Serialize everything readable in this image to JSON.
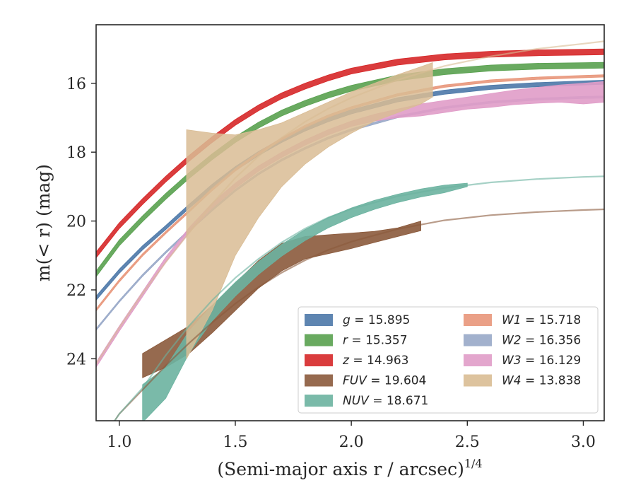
{
  "chart_data": {
    "type": "line",
    "title": "",
    "xlabel": "(Semi-major axis r / arcsec)",
    "xlabel_exponent": "1/4",
    "ylabel": "m(< r) (mag)",
    "xlim": [
      0.9,
      3.09
    ],
    "ylim": [
      25.8,
      14.3
    ],
    "y_inverted": true,
    "x_ticks": [
      "1.0",
      "1.5",
      "2.0",
      "2.5",
      "3.0"
    ],
    "y_ticks": [
      "16",
      "18",
      "20",
      "22",
      "24"
    ],
    "grid": false,
    "legend_placement": "lower-right",
    "series": [
      {
        "name": "g",
        "legend_value": "15.895",
        "color": "#4c78a8",
        "band_x": [
          0.9,
          1.0,
          1.1,
          1.2,
          1.3,
          1.4,
          1.5,
          1.6,
          1.7,
          1.8,
          1.9,
          2.0,
          2.2,
          2.4,
          2.6,
          2.8,
          3.0,
          3.09
        ],
        "band_low": [
          22.18,
          21.4,
          20.72,
          20.13,
          19.52,
          18.93,
          18.42,
          17.98,
          17.6,
          17.27,
          17.0,
          16.77,
          16.42,
          16.2,
          16.06,
          15.98,
          15.93,
          15.91
        ],
        "band_high": [
          22.3,
          21.52,
          20.84,
          20.25,
          19.64,
          19.05,
          18.54,
          18.1,
          17.72,
          17.39,
          17.12,
          16.89,
          16.54,
          16.32,
          16.18,
          16.1,
          16.05,
          16.03
        ]
      },
      {
        "name": "r",
        "legend_value": "15.357",
        "color": "#59a14f",
        "band_x": [
          0.9,
          1.0,
          1.1,
          1.2,
          1.3,
          1.4,
          1.5,
          1.6,
          1.7,
          1.8,
          1.9,
          2.0,
          2.2,
          2.4,
          2.6,
          2.8,
          3.0,
          3.09
        ],
        "band_low": [
          21.45,
          20.55,
          19.85,
          19.2,
          18.6,
          18.05,
          17.55,
          17.13,
          16.78,
          16.5,
          16.26,
          16.06,
          15.76,
          15.58,
          15.47,
          15.42,
          15.4,
          15.39
        ],
        "band_high": [
          21.62,
          20.72,
          20.02,
          19.37,
          18.77,
          18.22,
          17.72,
          17.3,
          16.95,
          16.67,
          16.43,
          16.23,
          15.93,
          15.75,
          15.64,
          15.59,
          15.57,
          15.56
        ]
      },
      {
        "name": "z",
        "legend_value": "14.963",
        "color": "#d62728",
        "band_x": [
          0.9,
          1.0,
          1.1,
          1.2,
          1.3,
          1.4,
          1.5,
          1.6,
          1.7,
          1.8,
          1.9,
          2.0,
          2.2,
          2.4,
          2.6,
          2.8,
          3.0,
          3.09
        ],
        "band_low": [
          20.9,
          20.05,
          19.35,
          18.7,
          18.1,
          17.55,
          17.05,
          16.63,
          16.28,
          16.0,
          15.76,
          15.56,
          15.3,
          15.15,
          15.07,
          15.03,
          15.01,
          15.0
        ],
        "band_high": [
          21.07,
          20.22,
          19.52,
          18.87,
          18.27,
          17.72,
          17.22,
          16.8,
          16.45,
          16.17,
          15.93,
          15.73,
          15.47,
          15.32,
          15.24,
          15.2,
          15.18,
          15.17
        ]
      },
      {
        "name": "FUV",
        "legend_value": "19.604",
        "color": "#8b5a3c",
        "band_x": [
          1.1,
          1.2,
          1.3,
          1.4,
          1.5,
          1.6,
          1.7,
          1.8,
          1.9,
          2.0,
          2.1,
          2.2,
          2.3
        ],
        "band_low": [
          23.85,
          23.45,
          23.05,
          22.45,
          21.8,
          21.15,
          20.65,
          20.45,
          20.4,
          20.35,
          20.3,
          20.2,
          20.0
        ],
        "band_high": [
          24.55,
          24.25,
          23.85,
          23.25,
          22.6,
          21.95,
          21.45,
          21.1,
          20.95,
          20.8,
          20.62,
          20.45,
          20.28
        ],
        "fit_x": [
          0.9,
          1.0,
          1.1,
          1.2,
          1.3,
          1.4,
          1.5,
          1.6,
          1.7,
          1.8,
          1.9,
          2.0,
          2.2,
          2.4,
          2.6,
          2.8,
          3.0,
          3.09
        ],
        "fit_y": [
          26.6,
          25.6,
          24.9,
          24.2,
          23.55,
          22.95,
          22.4,
          21.92,
          21.5,
          21.14,
          20.84,
          20.6,
          20.23,
          19.98,
          19.83,
          19.74,
          19.68,
          19.66
        ]
      },
      {
        "name": "NUV",
        "legend_value": "18.671",
        "color": "#6bb3a0",
        "band_x": [
          1.1,
          1.2,
          1.3,
          1.4,
          1.5,
          1.6,
          1.7,
          1.8,
          1.9,
          2.0,
          2.1,
          2.2,
          2.3,
          2.4,
          2.5
        ],
        "band_low": [
          24.75,
          24.25,
          23.2,
          22.45,
          21.78,
          21.18,
          20.68,
          20.25,
          19.9,
          19.62,
          19.4,
          19.22,
          19.07,
          18.96,
          18.9
        ],
        "band_high": [
          25.85,
          25.15,
          23.85,
          22.9,
          22.18,
          21.55,
          21.02,
          20.57,
          20.2,
          19.9,
          19.66,
          19.46,
          19.3,
          19.18,
          19.0
        ],
        "fit_x": [
          0.9,
          1.0,
          1.1,
          1.2,
          1.3,
          1.4,
          1.5,
          1.6,
          1.7,
          1.8,
          1.9,
          2.0,
          2.2,
          2.4,
          2.6,
          2.8,
          3.0,
          3.09
        ],
        "fit_y": [
          26.6,
          25.6,
          24.85,
          23.9,
          23.05,
          22.3,
          21.65,
          21.1,
          20.62,
          20.22,
          19.9,
          19.65,
          19.28,
          19.04,
          18.88,
          18.78,
          18.72,
          18.7
        ]
      },
      {
        "name": "W1",
        "legend_value": "15.718",
        "color": "#e8967a",
        "band_x": [
          0.9,
          1.0,
          1.1,
          1.2,
          1.3,
          1.4,
          1.5,
          1.6,
          1.7,
          1.8,
          1.9,
          2.0,
          2.2,
          2.4,
          2.6,
          2.8,
          3.0,
          3.09
        ],
        "band_low": [
          22.55,
          21.7,
          20.95,
          20.3,
          19.68,
          19.05,
          18.48,
          18.0,
          17.58,
          17.22,
          16.92,
          16.68,
          16.3,
          16.05,
          15.9,
          15.82,
          15.77,
          15.75
        ],
        "band_high": [
          22.62,
          21.77,
          21.02,
          20.37,
          19.75,
          19.12,
          18.55,
          18.07,
          17.65,
          17.29,
          16.99,
          16.75,
          16.37,
          16.12,
          15.97,
          15.89,
          15.84,
          15.82
        ]
      },
      {
        "name": "W2",
        "legend_value": "16.356",
        "color": "#98a8c8",
        "band_x": [
          0.9,
          1.0,
          1.1,
          1.2,
          1.3,
          1.4,
          1.5,
          1.6,
          1.7,
          1.8,
          1.9,
          2.0,
          2.2,
          2.4,
          2.6,
          2.8,
          3.0,
          3.09
        ],
        "band_low": [
          23.12,
          22.3,
          21.55,
          20.88,
          20.25,
          19.65,
          19.08,
          18.6,
          18.2,
          17.86,
          17.56,
          17.32,
          16.94,
          16.68,
          16.52,
          16.43,
          16.38,
          16.37
        ],
        "band_high": [
          23.18,
          22.36,
          21.61,
          20.94,
          20.31,
          19.71,
          19.14,
          18.66,
          18.26,
          17.92,
          17.62,
          17.38,
          17.0,
          16.74,
          16.58,
          16.49,
          16.44,
          16.43
        ]
      },
      {
        "name": "W3",
        "legend_value": "16.129",
        "color": "#e09cc8",
        "band_x": [
          0.9,
          1.0,
          1.1,
          1.2,
          1.3,
          1.4,
          1.5,
          1.6,
          1.7,
          1.8,
          1.9,
          2.0,
          2.1,
          2.2,
          2.3,
          2.4,
          2.5,
          2.6,
          2.7,
          2.8,
          2.9,
          3.0,
          3.09
        ],
        "band_low": [
          24.1,
          23.05,
          22.05,
          21.05,
          20.2,
          19.48,
          18.9,
          18.4,
          18.0,
          17.65,
          17.35,
          17.1,
          16.9,
          16.75,
          16.6,
          16.5,
          16.4,
          16.3,
          16.2,
          16.12,
          16.05,
          16.0,
          15.95
        ],
        "band_high": [
          24.25,
          23.2,
          22.2,
          21.2,
          20.35,
          19.63,
          19.05,
          18.55,
          18.15,
          17.8,
          17.5,
          17.25,
          17.1,
          17.0,
          16.95,
          16.85,
          16.75,
          16.7,
          16.62,
          16.58,
          16.55,
          16.6,
          16.55
        ]
      },
      {
        "name": "W4",
        "legend_value": "13.838",
        "color": "#d9bc94",
        "band_x": [
          1.29,
          1.4,
          1.5,
          1.6,
          1.7,
          1.8,
          1.9,
          2.0,
          2.1,
          2.2,
          2.3,
          2.35
        ],
        "band_low": [
          17.35,
          17.45,
          17.5,
          17.35,
          17.15,
          16.85,
          16.55,
          16.25,
          16.0,
          15.75,
          15.52,
          15.4
        ],
        "band_high": [
          24.0,
          22.6,
          21.0,
          19.9,
          19.0,
          18.35,
          17.85,
          17.45,
          17.1,
          16.85,
          16.6,
          16.4
        ],
        "fit_x": [
          0.9,
          1.0,
          1.1,
          1.2,
          1.3,
          1.4,
          1.5,
          1.6,
          1.7,
          1.8,
          1.9,
          2.0,
          2.2,
          2.4,
          2.6,
          2.8,
          3.0,
          3.09
        ],
        "fit_y": [
          24.15,
          23.1,
          22.1,
          21.2,
          20.35,
          19.5,
          18.75,
          18.12,
          17.58,
          17.12,
          16.74,
          16.42,
          15.9,
          15.5,
          15.22,
          15.0,
          14.85,
          14.78
        ]
      }
    ]
  }
}
